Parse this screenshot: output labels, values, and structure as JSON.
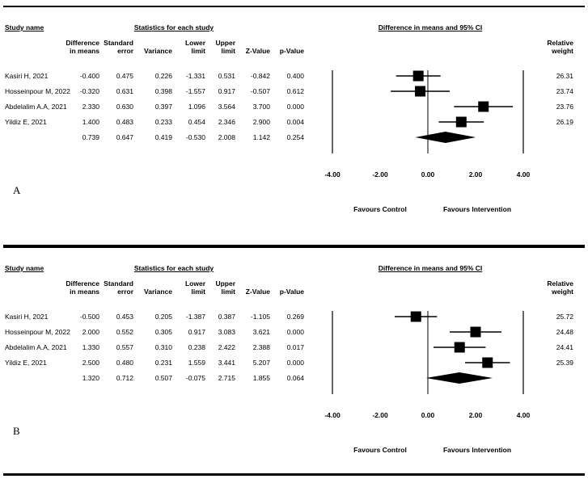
{
  "chart_data": [
    {
      "type": "forest",
      "panel_label": "A",
      "headers": {
        "study": "Study name",
        "group": "Statistics for each study",
        "plot": "Difference in means and 95% CI",
        "diff_1": "Difference",
        "diff_2": "in means",
        "se_1": "Standard",
        "se_2": "error",
        "var": "Variance",
        "lower_1": "Lower",
        "lower_2": "limit",
        "upper_1": "Upper",
        "upper_2": "limit",
        "z": "Z-Value",
        "p": "p-Value",
        "weight_1": "Relative",
        "weight_2": "weight"
      },
      "studies": [
        {
          "name": "Kasiri H, 2021",
          "diff": "-0.400",
          "se": "0.475",
          "var": "0.226",
          "lower": "-1.331",
          "upper": "0.531",
          "z": "-0.842",
          "p": "0.400",
          "weight": "26.31",
          "diff_v": -0.4,
          "lower_v": -1.331,
          "upper_v": 0.531
        },
        {
          "name": "Hosseinpour M, 2022",
          "diff": "-0.320",
          "se": "0.631",
          "var": "0.398",
          "lower": "-1.557",
          "upper": "0.917",
          "z": "-0.507",
          "p": "0.612",
          "weight": "23.74",
          "diff_v": -0.32,
          "lower_v": -1.557,
          "upper_v": 0.917
        },
        {
          "name": "Abdelalim A.A, 2021",
          "diff": "2.330",
          "se": "0.630",
          "var": "0.397",
          "lower": "1.096",
          "upper": "3.564",
          "z": "3.700",
          "p": "0.000",
          "weight": "23.76",
          "diff_v": 2.33,
          "lower_v": 1.096,
          "upper_v": 3.564
        },
        {
          "name": "Yildiz E, 2021",
          "diff": "1.400",
          "se": "0.483",
          "var": "0.233",
          "lower": "0.454",
          "upper": "2.346",
          "z": "2.900",
          "p": "0.004",
          "weight": "26.19",
          "diff_v": 1.4,
          "lower_v": 0.454,
          "upper_v": 2.346
        }
      ],
      "pooled": {
        "diff": "0.739",
        "se": "0.647",
        "var": "0.419",
        "lower": "-0.530",
        "upper": "2.008",
        "z": "1.142",
        "p": "0.254",
        "diff_v": 0.739,
        "lower_v": -0.53,
        "upper_v": 2.008
      },
      "xlim": [
        -4,
        4
      ],
      "ticks": [
        "-4.00",
        "-2.00",
        "0.00",
        "2.00",
        "4.00"
      ],
      "tick_values": [
        -4,
        -2,
        0,
        2,
        4
      ],
      "favours_left": "Favours Control",
      "favours_right": "Favours Intervention"
    },
    {
      "type": "forest",
      "panel_label": "B",
      "headers": {
        "study": "Study name",
        "group": "Statistics for each study",
        "plot": "Difference in means and 95% CI",
        "diff_1": "Difference",
        "diff_2": "in means",
        "se_1": "Standard",
        "se_2": "error",
        "var": "Variance",
        "lower_1": "Lower",
        "lower_2": "limit",
        "upper_1": "Upper",
        "upper_2": "limit",
        "z": "Z-Value",
        "p": "p-Value",
        "weight_1": "Relative",
        "weight_2": "weight"
      },
      "studies": [
        {
          "name": "Kasiri H, 2021",
          "diff": "-0.500",
          "se": "0.453",
          "var": "0.205",
          "lower": "-1.387",
          "upper": "0.387",
          "z": "-1.105",
          "p": "0.269",
          "weight": "25.72",
          "diff_v": -0.5,
          "lower_v": -1.387,
          "upper_v": 0.387
        },
        {
          "name": "Hosseinpour M, 2022",
          "diff": "2.000",
          "se": "0.552",
          "var": "0.305",
          "lower": "0.917",
          "upper": "3.083",
          "z": "3.621",
          "p": "0.000",
          "weight": "24.48",
          "diff_v": 2.0,
          "lower_v": 0.917,
          "upper_v": 3.083
        },
        {
          "name": "Abdelalim A.A, 2021",
          "diff": "1.330",
          "se": "0.557",
          "var": "0.310",
          "lower": "0.238",
          "upper": "2.422",
          "z": "2.388",
          "p": "0.017",
          "weight": "24.41",
          "diff_v": 1.33,
          "lower_v": 0.238,
          "upper_v": 2.422
        },
        {
          "name": "Yildiz E, 2021",
          "diff": "2.500",
          "se": "0.480",
          "var": "0.231",
          "lower": "1.559",
          "upper": "3.441",
          "z": "5.207",
          "p": "0.000",
          "weight": "25.39",
          "diff_v": 2.5,
          "lower_v": 1.559,
          "upper_v": 3.441
        }
      ],
      "pooled": {
        "diff": "1.320",
        "se": "0.712",
        "var": "0.507",
        "lower": "-0.075",
        "upper": "2.715",
        "z": "1.855",
        "p": "0.064",
        "diff_v": 1.32,
        "lower_v": -0.075,
        "upper_v": 2.715
      },
      "xlim": [
        -4,
        4
      ],
      "ticks": [
        "-4.00",
        "-2.00",
        "0.00",
        "2.00",
        "4.00"
      ],
      "tick_values": [
        -4,
        -2,
        0,
        2,
        4
      ],
      "favours_left": "Favours Control",
      "favours_right": "Favours Intervention"
    }
  ]
}
